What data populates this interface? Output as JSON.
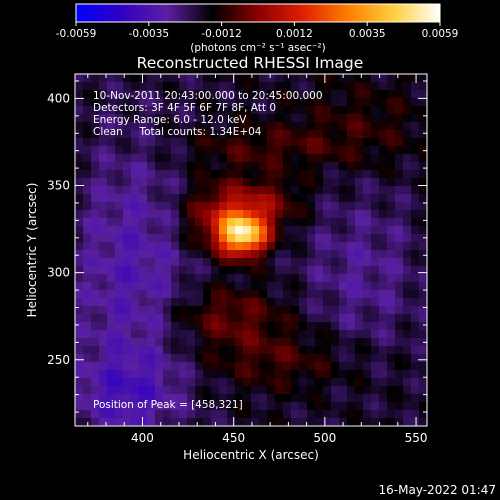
{
  "chart_data": {
    "type": "heatmap",
    "title": "Reconstructed RHESSI Image",
    "xlabel": "Heliocentric X (arcsec)",
    "ylabel": "Heliocentric Y (arcsec)",
    "xlim": [
      363,
      556
    ],
    "ylim": [
      212,
      414
    ],
    "xticks": [
      400,
      450,
      500,
      550
    ],
    "yticks": [
      250,
      300,
      350,
      400
    ],
    "colorbar": {
      "ticks": [
        "-0.0059",
        "-0.0035",
        "-0.0012",
        "0.0012",
        "0.0035",
        "0.0059"
      ],
      "range": [
        -0.0059,
        0.0059
      ],
      "unit_label": "(photons cm⁻² s⁻¹ asec⁻²)",
      "colors": [
        "#0000ff",
        "#3000c0",
        "#5a20a0",
        "#000000",
        "#8a0000",
        "#e02000",
        "#ff8000",
        "#ffd040",
        "#ffffff"
      ]
    },
    "annotations": [
      "10-Nov-2011 20:43:00.000 to 20:45:00.000",
      "Detectors: 3F 4F 5F 6F 7F 8F, Att 0",
      "Energy Range: 6.0 - 12.0 keV",
      "Clean     Total counts: 1.34E+04",
      "Position of Peak = [458,321]"
    ],
    "peak": [
      458,
      321
    ],
    "sources": [
      {
        "x": 455,
        "y": 322,
        "sx": 9,
        "sy": 8,
        "amp": 0.0059
      },
      {
        "x": 445,
        "y": 332,
        "sx": 16,
        "sy": 14,
        "amp": 0.0024
      },
      {
        "x": 470,
        "y": 340,
        "sx": 14,
        "sy": 10,
        "amp": 0.0012
      },
      {
        "x": 445,
        "y": 275,
        "sx": 24,
        "sy": 12,
        "amp": 0.0014
      },
      {
        "x": 475,
        "y": 250,
        "sx": 30,
        "sy": 12,
        "amp": 0.001
      },
      {
        "x": 465,
        "y": 372,
        "sx": 36,
        "sy": 9,
        "amp": 0.0009
      },
      {
        "x": 520,
        "y": 385,
        "sx": 25,
        "sy": 18,
        "amp": 0.0007
      },
      {
        "x": 395,
        "y": 295,
        "sx": 25,
        "sy": 60,
        "amp": -0.0015
      },
      {
        "x": 520,
        "y": 300,
        "sx": 25,
        "sy": 35,
        "amp": -0.001
      },
      {
        "x": 390,
        "y": 230,
        "sx": 20,
        "sy": 15,
        "amp": -0.0012
      }
    ]
  },
  "footer": {
    "timestamp": "16-May-2022 01:47"
  }
}
